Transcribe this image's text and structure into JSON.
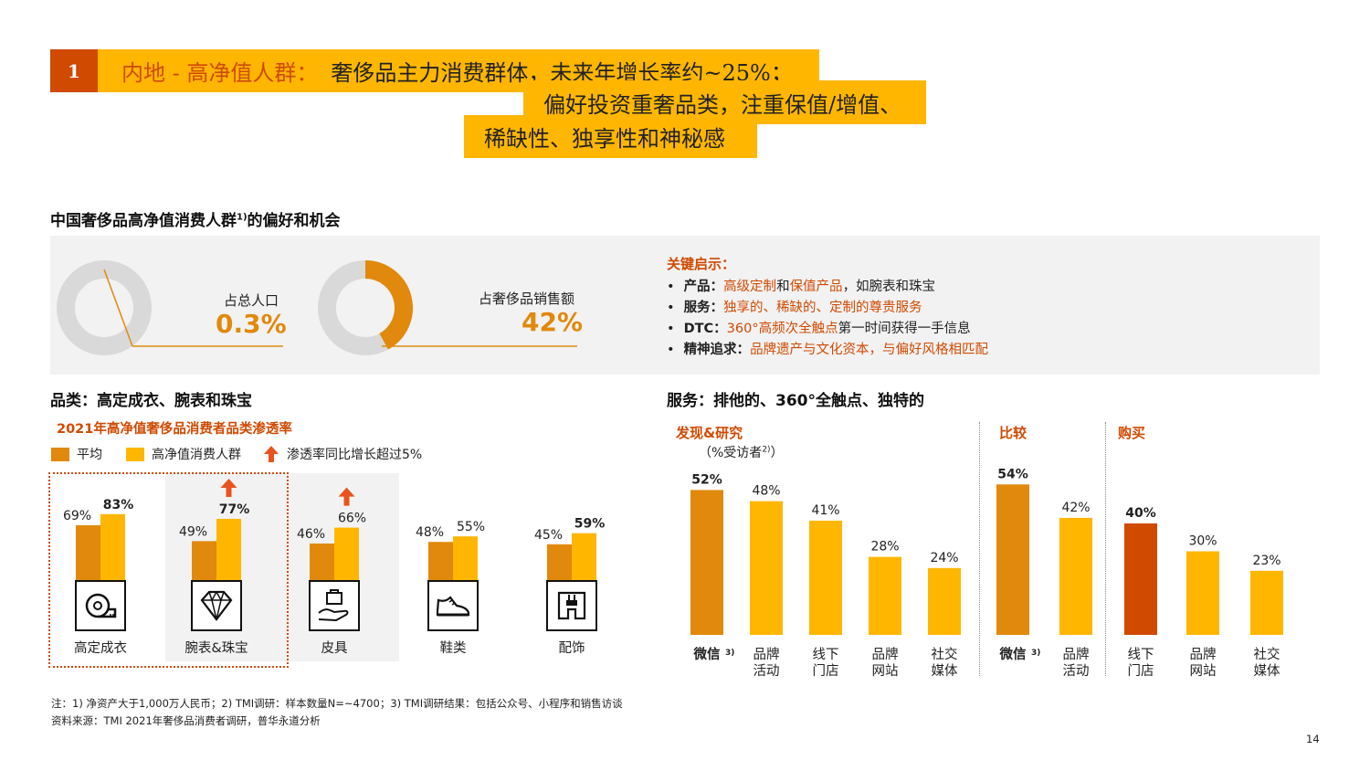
{
  "header": {
    "number": "1",
    "line1_orange": "内地 - 高净值人群：",
    "line1_rest": "奢侈品主力消费群体，未来年增长率约~25%；",
    "line2": "偏好投资重奢品类，注重保值/增值、",
    "line3": "稀缺性、独享性和神秘感"
  },
  "section_title": "中国奢侈品高净值消费人群",
  "section_title_sup": "1)",
  "section_title_tail": "的偏好和机会",
  "stats": [
    {
      "label": "占总人口",
      "value": "0.3%",
      "share": 0.003
    },
    {
      "label": "占奢侈品销售额",
      "value": "42%",
      "share": 0.42
    }
  ],
  "insights": {
    "title": "关键启示：",
    "items": [
      {
        "key": "产品：",
        "parts": [
          {
            "t": "高级定制",
            "o": true
          },
          {
            "t": "和",
            "o": false
          },
          {
            "t": "保值产品",
            "o": true
          },
          {
            "t": "，如腕表和珠宝",
            "o": false
          }
        ]
      },
      {
        "key": "服务：",
        "parts": [
          {
            "t": "独享的、稀缺的、定制的尊贵服务",
            "o": true
          }
        ]
      },
      {
        "key": "DTC：",
        "parts": [
          {
            "t": "360°高频次全触点",
            "o": true
          },
          {
            "t": "第一时间获得一手信息",
            "o": false
          }
        ]
      },
      {
        "key": "精神追求：",
        "parts": [
          {
            "t": "品牌遗产与文化资本，与偏好风格相匹配",
            "o": true
          }
        ]
      }
    ]
  },
  "left_title": "品类：高定成衣、腕表和珠宝",
  "left_chart_title": "2021年高净值奢侈品消费者品类渗透率",
  "legend": {
    "avg": "平均",
    "hnw": "高净值消费人群",
    "growth": "渗透率同比增长超过5%"
  },
  "right_title": "服务：排他的、360°全触点、独特的",
  "right_groups": {
    "discover": "发现&研究",
    "discover_sub": "（%受访者",
    "discover_sup": "2)",
    "discover_close": "）",
    "compare": "比较",
    "buy": "购买"
  },
  "colors": {
    "avg": "#e0890c",
    "hnw": "#ffb600",
    "highlight": "#d04a02",
    "arrow": "#e8531e"
  },
  "chart_data": [
    {
      "type": "bar",
      "title": "2021年高净值奢侈品消费者品类渗透率",
      "categories": [
        "高定成衣",
        "腕表&珠宝",
        "皮具",
        "鞋类",
        "配饰"
      ],
      "icons": [
        "tape-measure-icon",
        "diamond-icon",
        "handbag-icon",
        "sneaker-icon",
        "accessory-icon"
      ],
      "series": [
        {
          "name": "平均",
          "values": [
            69,
            49,
            46,
            48,
            45
          ],
          "labels": [
            "69%",
            "49%",
            "46%",
            "48%",
            "45%"
          ]
        },
        {
          "name": "高净值消费人群",
          "values": [
            83,
            77,
            66,
            55,
            59
          ],
          "labels": [
            "83%",
            "77%",
            "66%",
            "55%",
            "59%"
          ]
        }
      ],
      "growth_flag": [
        false,
        true,
        true,
        false,
        false
      ],
      "bold_hnw": [
        true,
        true,
        false,
        false,
        true
      ]
    },
    {
      "type": "bar",
      "categories": [
        "微信",
        "品牌活动",
        "线下门店",
        "品牌网站",
        "社交媒体",
        "微信",
        "品牌活动",
        "线下门店",
        "品牌网站",
        "社交媒体"
      ],
      "category_lines": [
        [
          "微信"
        ],
        [
          "品牌",
          "活动"
        ],
        [
          "线下",
          "门店"
        ],
        [
          "品牌",
          "网站"
        ],
        [
          "社交",
          "媒体"
        ],
        [
          "微信"
        ],
        [
          "品牌",
          "活动"
        ],
        [
          "线下",
          "门店"
        ],
        [
          "品牌",
          "网站"
        ],
        [
          "社交",
          "媒体"
        ]
      ],
      "category_sup": [
        "3)",
        "",
        "",
        "",
        "",
        "3)",
        "",
        "",
        "",
        ""
      ],
      "groups": [
        "发现&研究",
        "发现&研究",
        "发现&研究",
        "发现&研究",
        "发现&研究",
        "比较",
        "比较",
        "购买",
        "购买",
        "购买"
      ],
      "values": [
        52,
        48,
        41,
        28,
        24,
        54,
        42,
        40,
        30,
        23
      ],
      "labels": [
        "52%",
        "48%",
        "41%",
        "28%",
        "24%",
        "54%",
        "42%",
        "40%",
        "30%",
        "23%"
      ],
      "bold": [
        true,
        false,
        false,
        false,
        false,
        true,
        false,
        true,
        false,
        false
      ],
      "colors": [
        "#e0890c",
        "#ffb600",
        "#ffb600",
        "#ffb600",
        "#ffb600",
        "#e0890c",
        "#ffb600",
        "#d04a02",
        "#ffb600",
        "#ffb600"
      ]
    }
  ],
  "notes": {
    "line1": "注：1) 净资产大于1,000万人民币；2) TMI调研：样本数量N=~4700；3) TMI调研结果：包括公众号、小程序和销售访谈",
    "line2": "资料来源：TMI 2021年奢侈品消费者调研，普华永道分析"
  },
  "page_number": "14"
}
